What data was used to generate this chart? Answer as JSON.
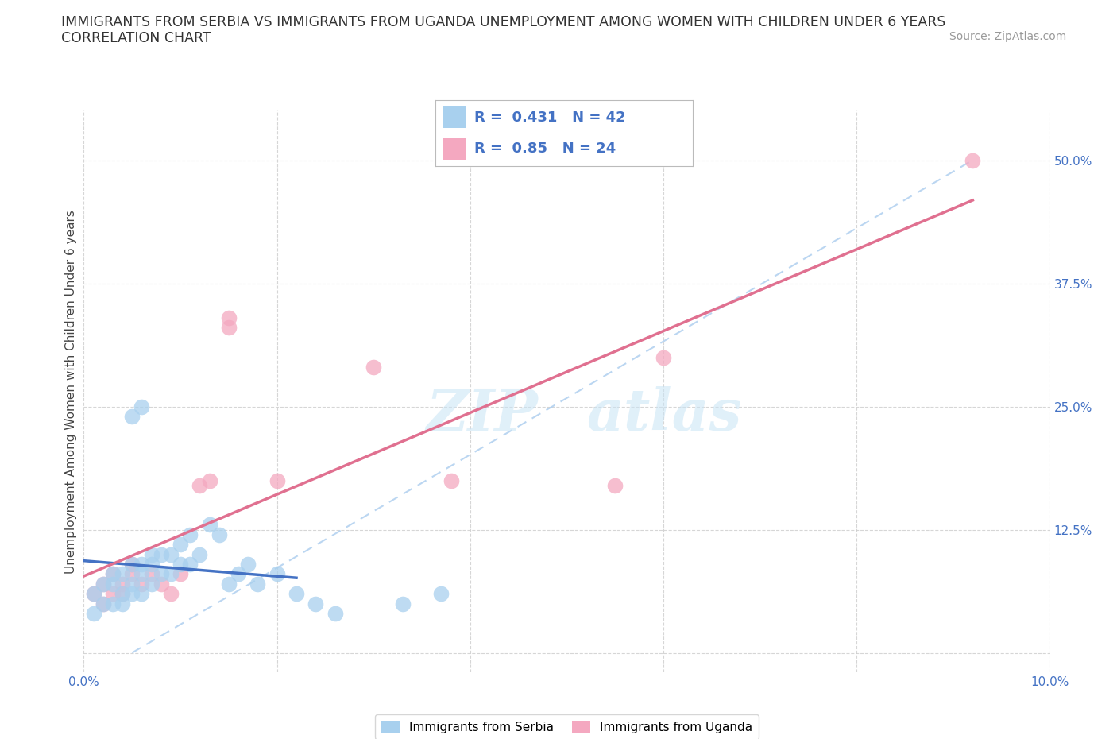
{
  "title_line1": "IMMIGRANTS FROM SERBIA VS IMMIGRANTS FROM UGANDA UNEMPLOYMENT AMONG WOMEN WITH CHILDREN UNDER 6 YEARS",
  "title_line2": "CORRELATION CHART",
  "source": "Source: ZipAtlas.com",
  "ylabel": "Unemployment Among Women with Children Under 6 years",
  "xlim": [
    0.0,
    0.1
  ],
  "ylim": [
    -0.02,
    0.55
  ],
  "serbia_R": 0.431,
  "serbia_N": 42,
  "uganda_R": 0.85,
  "uganda_N": 24,
  "serbia_color": "#A8D0EE",
  "uganda_color": "#F4A8C0",
  "serbia_line_color": "#4472C4",
  "uganda_line_color": "#E07090",
  "diagonal_color": "#AABBCC",
  "serbia_x": [
    0.001,
    0.001,
    0.002,
    0.002,
    0.003,
    0.003,
    0.003,
    0.004,
    0.004,
    0.004,
    0.005,
    0.005,
    0.005,
    0.006,
    0.006,
    0.006,
    0.007,
    0.007,
    0.007,
    0.008,
    0.008,
    0.009,
    0.009,
    0.01,
    0.01,
    0.011,
    0.011,
    0.012,
    0.013,
    0.014,
    0.005,
    0.006,
    0.015,
    0.016,
    0.017,
    0.018,
    0.02,
    0.022,
    0.024,
    0.026,
    0.033,
    0.037
  ],
  "serbia_y": [
    0.04,
    0.06,
    0.05,
    0.07,
    0.05,
    0.07,
    0.08,
    0.05,
    0.06,
    0.08,
    0.06,
    0.07,
    0.09,
    0.06,
    0.08,
    0.09,
    0.07,
    0.09,
    0.1,
    0.08,
    0.1,
    0.08,
    0.1,
    0.09,
    0.11,
    0.09,
    0.12,
    0.1,
    0.13,
    0.12,
    0.24,
    0.25,
    0.07,
    0.08,
    0.09,
    0.07,
    0.08,
    0.06,
    0.05,
    0.04,
    0.05,
    0.06
  ],
  "uganda_x": [
    0.001,
    0.002,
    0.002,
    0.003,
    0.003,
    0.004,
    0.004,
    0.005,
    0.005,
    0.006,
    0.007,
    0.008,
    0.009,
    0.01,
    0.012,
    0.013,
    0.015,
    0.015,
    0.02,
    0.03,
    0.038,
    0.055,
    0.06,
    0.092
  ],
  "uganda_y": [
    0.06,
    0.05,
    0.07,
    0.06,
    0.08,
    0.06,
    0.07,
    0.08,
    0.09,
    0.07,
    0.08,
    0.07,
    0.06,
    0.08,
    0.17,
    0.175,
    0.33,
    0.34,
    0.175,
    0.29,
    0.175,
    0.17,
    0.3,
    0.5
  ]
}
